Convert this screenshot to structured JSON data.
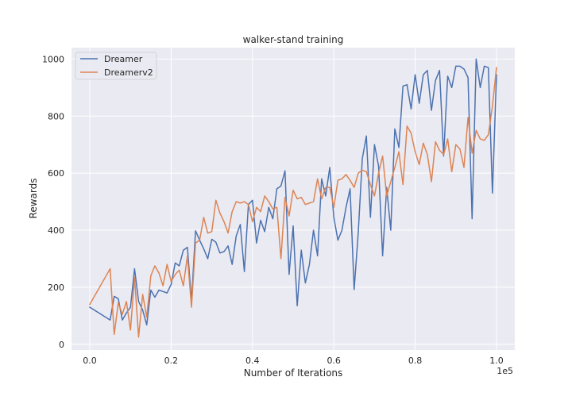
{
  "chart_data": {
    "type": "line",
    "title": "walker-stand training",
    "xlabel": "Number of Iterations",
    "ylabel": "Rewards",
    "x_offset_text": "1e5",
    "xlim": [
      -0.045,
      1.045
    ],
    "ylim": [
      -20,
      1040
    ],
    "x_ticks": [
      0.0,
      0.2,
      0.4,
      0.6,
      0.8,
      1.0
    ],
    "x_tick_labels": [
      "0.0",
      "0.2",
      "0.4",
      "0.6",
      "0.8",
      "1.0"
    ],
    "y_ticks": [
      0,
      200,
      400,
      600,
      800,
      1000
    ],
    "y_tick_labels": [
      "0",
      "200",
      "400",
      "600",
      "800",
      "1000"
    ],
    "grid": true,
    "legend_position": "top-left",
    "background": "#EAEAF2",
    "series": [
      {
        "name": "Dreamer",
        "color": "#4C72B0",
        "x": [
          0.0,
          0.05,
          0.06,
          0.07,
          0.08,
          0.09,
          0.1,
          0.11,
          0.12,
          0.13,
          0.14,
          0.15,
          0.16,
          0.17,
          0.18,
          0.19,
          0.2,
          0.21,
          0.22,
          0.23,
          0.24,
          0.25,
          0.26,
          0.27,
          0.28,
          0.29,
          0.3,
          0.31,
          0.32,
          0.33,
          0.34,
          0.35,
          0.36,
          0.37,
          0.38,
          0.39,
          0.4,
          0.41,
          0.42,
          0.43,
          0.44,
          0.45,
          0.46,
          0.47,
          0.48,
          0.49,
          0.5,
          0.51,
          0.52,
          0.53,
          0.54,
          0.55,
          0.56,
          0.57,
          0.58,
          0.59,
          0.6,
          0.61,
          0.62,
          0.63,
          0.64,
          0.65,
          0.66,
          0.67,
          0.68,
          0.69,
          0.7,
          0.71,
          0.72,
          0.73,
          0.74,
          0.75,
          0.76,
          0.77,
          0.78,
          0.79,
          0.8,
          0.81,
          0.82,
          0.83,
          0.84,
          0.85,
          0.86,
          0.87,
          0.88,
          0.89,
          0.9,
          0.91,
          0.92,
          0.93,
          0.94,
          0.95,
          0.96,
          0.97,
          0.98,
          0.99,
          1.0
        ],
        "y": [
          130,
          85,
          168,
          160,
          85,
          110,
          130,
          265,
          150,
          120,
          68,
          190,
          165,
          190,
          185,
          180,
          210,
          285,
          275,
          330,
          340,
          150,
          398,
          365,
          335,
          300,
          368,
          358,
          320,
          325,
          345,
          280,
          380,
          420,
          255,
          490,
          505,
          355,
          435,
          395,
          480,
          440,
          545,
          555,
          608,
          245,
          415,
          135,
          330,
          215,
          280,
          400,
          310,
          580,
          520,
          620,
          445,
          365,
          400,
          480,
          545,
          192,
          390,
          650,
          730,
          445,
          700,
          625,
          310,
          550,
          400,
          755,
          690,
          905,
          910,
          825,
          945,
          845,
          945,
          960,
          820,
          925,
          960,
          660,
          940,
          900,
          975,
          975,
          965,
          935,
          440,
          1000,
          900,
          975,
          970,
          530,
          945
        ]
      },
      {
        "name": "Dreamerv2",
        "color": "#DD8452",
        "x": [
          0.0,
          0.05,
          0.06,
          0.07,
          0.08,
          0.09,
          0.1,
          0.11,
          0.12,
          0.13,
          0.14,
          0.15,
          0.16,
          0.17,
          0.18,
          0.19,
          0.2,
          0.21,
          0.22,
          0.23,
          0.24,
          0.25,
          0.26,
          0.27,
          0.28,
          0.29,
          0.3,
          0.31,
          0.32,
          0.33,
          0.34,
          0.35,
          0.36,
          0.37,
          0.38,
          0.39,
          0.4,
          0.41,
          0.42,
          0.43,
          0.44,
          0.45,
          0.46,
          0.47,
          0.48,
          0.49,
          0.5,
          0.51,
          0.52,
          0.53,
          0.54,
          0.55,
          0.56,
          0.57,
          0.58,
          0.59,
          0.6,
          0.61,
          0.62,
          0.63,
          0.64,
          0.65,
          0.66,
          0.67,
          0.68,
          0.69,
          0.7,
          0.71,
          0.72,
          0.73,
          0.74,
          0.75,
          0.76,
          0.77,
          0.78,
          0.79,
          0.8,
          0.81,
          0.82,
          0.83,
          0.84,
          0.85,
          0.86,
          0.87,
          0.88,
          0.89,
          0.9,
          0.91,
          0.92,
          0.93,
          0.94,
          0.95,
          0.96,
          0.97,
          0.98,
          0.99,
          1.0
        ],
        "y": [
          140,
          265,
          35,
          145,
          105,
          150,
          50,
          235,
          25,
          175,
          95,
          240,
          275,
          250,
          205,
          280,
          220,
          245,
          260,
          205,
          310,
          130,
          355,
          365,
          445,
          390,
          395,
          505,
          460,
          430,
          390,
          465,
          500,
          495,
          500,
          490,
          430,
          480,
          465,
          520,
          500,
          475,
          480,
          300,
          515,
          450,
          540,
          510,
          515,
          490,
          495,
          500,
          580,
          510,
          550,
          550,
          480,
          575,
          580,
          595,
          575,
          550,
          600,
          610,
          605,
          560,
          520,
          600,
          660,
          520,
          570,
          620,
          675,
          560,
          765,
          740,
          675,
          630,
          705,
          665,
          570,
          710,
          680,
          665,
          720,
          605,
          700,
          685,
          620,
          795,
          670,
          750,
          720,
          715,
          735,
          835,
          970
        ]
      }
    ]
  }
}
